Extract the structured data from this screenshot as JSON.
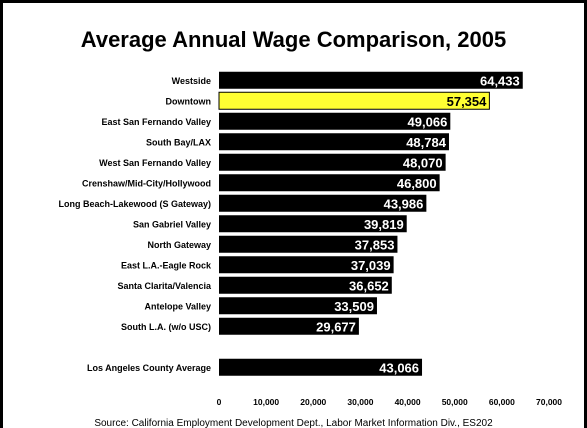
{
  "colors": {
    "bar": "#000000",
    "highlight": "#ffff33",
    "highlight_text": "#000000",
    "bar_text": "#ffffff"
  },
  "chart_data": {
    "type": "bar",
    "orientation": "horizontal",
    "title": "Average Annual Wage Comparison, 2005",
    "categories": [
      "Westside",
      "Downtown",
      "East San Fernando Valley",
      "South Bay/LAX",
      "West San Fernando Valley",
      "Crenshaw/Mid-City/Hollywood",
      "Long Beach-Lakewood (S Gateway)",
      "San Gabriel Valley",
      "North Gateway",
      "East L.A.-Eagle Rock",
      "Santa Clarita/Valencia",
      "Antelope Valley",
      "South L.A. (w/o USC)",
      "",
      "Los Angeles County Average"
    ],
    "values": [
      64433,
      57354,
      49066,
      48784,
      48070,
      46800,
      43986,
      39819,
      37853,
      37039,
      36652,
      33509,
      29677,
      null,
      43066
    ],
    "value_labels": [
      "64,433",
      "57,354",
      "49,066",
      "48,784",
      "48,070",
      "46,800",
      "43,986",
      "39,819",
      "37,853",
      "37,039",
      "36,652",
      "33,509",
      "29,677",
      "",
      "43,066"
    ],
    "highlight": [
      "Downtown"
    ],
    "xlim": [
      0,
      70000
    ],
    "xticks": [
      0,
      10000,
      20000,
      30000,
      40000,
      50000,
      60000,
      70000
    ],
    "xtick_labels": [
      "0",
      "10,000",
      "20,000",
      "30,000",
      "40,000",
      "50,000",
      "60,000",
      "70,000"
    ],
    "grid": false,
    "legend": "none",
    "source": "Source: California Employment Development Dept., Labor Market Information Div., ES202"
  }
}
